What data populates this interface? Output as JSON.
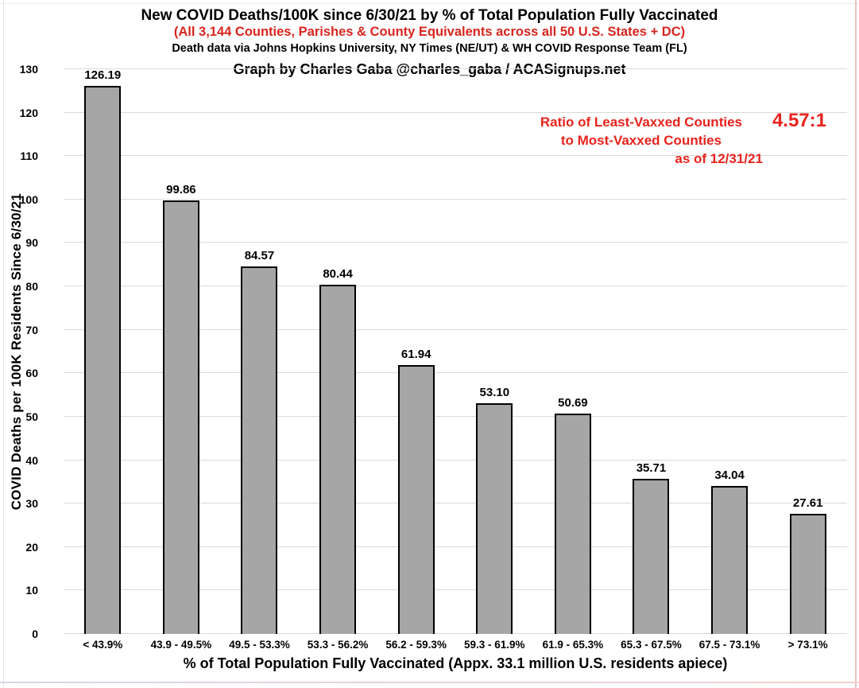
{
  "header": {
    "title": "New COVID Deaths/100K since 6/30/21 by % of Total Population Fully Vaccinated",
    "subtitle": "(All 3,144 Counties, Parishes & County Equivalents across all 50 U.S. States + DC)",
    "source_line": "Death data via Johns Hopkins University, NY Times (NE/UT) & WH COVID Response Team (FL)",
    "credit": "Graph by Charles Gaba @charles_gaba / ACASignups.net"
  },
  "annotation": {
    "line1": "Ratio of Least-Vaxxed Counties",
    "line2": "to Most-Vaxxed Counties",
    "line3": "as of 12/31/21",
    "ratio": "4.57:1"
  },
  "colors": {
    "accent_red": "#d8261f",
    "annotation_red": "#e8231d",
    "bar_fill": "#a6a6a6",
    "bar_border": "#000000",
    "gridline": "#d9d9d9"
  },
  "chart_data": {
    "type": "bar",
    "title": "New COVID Deaths/100K since 6/30/21 by % of Total Population Fully Vaccinated",
    "categories": [
      "< 43.9%",
      "43.9 - 49.5%",
      "49.5 - 53.3%",
      "53.3 - 56.2%",
      "56.2 - 59.3%",
      "59.3 - 61.9%",
      "61.9 - 65.3%",
      "65.3 - 67.5%",
      "67.5 - 73.1%",
      "> 73.1%"
    ],
    "values": [
      126.19,
      99.86,
      84.57,
      80.44,
      61.94,
      53.1,
      50.69,
      35.71,
      34.04,
      27.61
    ],
    "bar_labels": [
      "126.19",
      "99.86",
      "84.57",
      "80.44",
      "61.94",
      "53.10",
      "50.69",
      "35.71",
      "34.04",
      "27.61"
    ],
    "xlabel": "% of Total Population Fully Vaccinated (Appx. 33.1 million U.S. residents apiece)",
    "ylabel": "COVID Deaths per 100K Residents Since 6/30/21",
    "ylim": [
      0,
      130
    ],
    "ytick_step": 10,
    "grid": true,
    "legend": "none"
  }
}
